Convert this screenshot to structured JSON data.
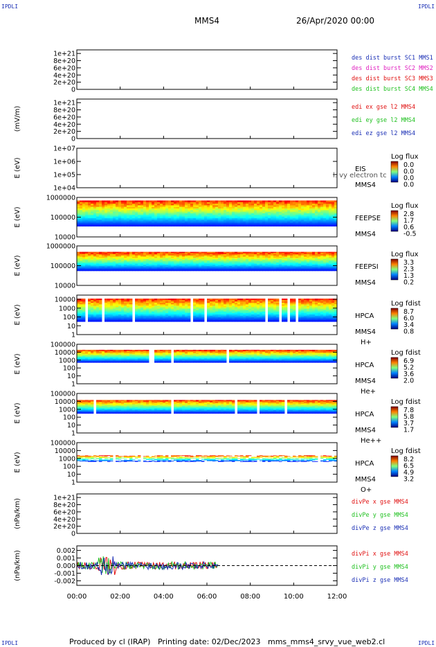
{
  "header": {
    "spacecraft": "MMS4",
    "date_time": "26/Apr/2020 00:00",
    "corner_labels": [
      "IPDLI",
      "IPDLI",
      "IPDLI",
      "IPDLI"
    ]
  },
  "footer": {
    "produced_by": "Produced by cl (IRAP)",
    "printing_date": "Printing date: 02/Dec/2023",
    "script": "mms_mms4_srvy_vue_web2.cl"
  },
  "colors": {
    "blue": "#1a2fb5",
    "magenta": "#e020c0",
    "red": "#e01010",
    "green": "#20c020"
  },
  "chart_data": [
    {
      "id": "des-dist",
      "type": "line",
      "ylabel": "",
      "y_ticks": [
        "1e+21",
        "8e+20",
        "6e+20",
        "4e+20",
        "2e+20",
        "0"
      ],
      "y_tick_values": [
        1e+21,
        8e+20,
        6e+20,
        4e+20,
        2e+20,
        0
      ],
      "ylim": [
        0,
        1.1e+21
      ],
      "dashed_zero": true,
      "legend": [
        {
          "text": "des dist burst SC1 MMS1",
          "color": "#1a2fb5"
        },
        {
          "text": "des dist burst SC2 MMS2",
          "color": "#e020c0"
        },
        {
          "text": "des dist burst SC3 MMS3",
          "color": "#e01010"
        },
        {
          "text": "des dist burst SC4 MMS4",
          "color": "#20c020"
        }
      ]
    },
    {
      "id": "edi-e",
      "type": "line",
      "ylabel": "(mV/m)",
      "y_ticks": [
        "1e+21",
        "8e+20",
        "6e+20",
        "4e+20",
        "2e+20",
        "0"
      ],
      "y_tick_values": [
        1e+21,
        8e+20,
        6e+20,
        4e+20,
        2e+20,
        0
      ],
      "ylim": [
        0,
        1.1e+21
      ],
      "dashed_zero": true,
      "legend": [
        {
          "text": "edi ex gse l2 MMS4",
          "color": "#e01010"
        },
        {
          "text": "edi ey gse l2 MMS4",
          "color": "#20c020"
        },
        {
          "text": "edi ez gse l2 MMS4",
          "color": "#1a2fb5"
        }
      ]
    },
    {
      "id": "eis",
      "type": "heatmap",
      "ylabel": "E (eV)",
      "y_ticks": [
        "1e+07",
        "1e+06",
        "1e+05",
        "1e+04"
      ],
      "y_tick_values": [
        10000000.0,
        1000000.0,
        100000.0,
        10000.0
      ],
      "ylim": [
        10000.0,
        10000000.0
      ],
      "log": true,
      "inst": [
        "EIS",
        "MMS4"
      ],
      "overlay_text": "l. vy electron tc",
      "cb_title": "Log flux",
      "cb_ticks": [
        "0.0",
        "0.0",
        "0.0",
        "0.0"
      ]
    },
    {
      "id": "feepse",
      "type": "heatmap",
      "ylabel": "E (eV)",
      "y_ticks": [
        "1000000",
        "100000",
        "10000"
      ],
      "y_tick_values": [
        1000000.0,
        100000.0,
        10000.0
      ],
      "ylim": [
        10000.0,
        1000000.0
      ],
      "log": true,
      "inst": [
        "FEEPSE",
        "MMS4"
      ],
      "cb_title": "Log flux",
      "cb_ticks": [
        "2.8",
        "1.7",
        "0.6",
        "-0.5"
      ],
      "coverage": [
        0.0,
        12.0
      ],
      "fill_range": [
        35000.0,
        700000.0
      ]
    },
    {
      "id": "feepsi",
      "type": "heatmap",
      "ylabel": "E (eV)",
      "y_ticks": [
        "1000000",
        "100000",
        "10000"
      ],
      "y_tick_values": [
        1000000.0,
        100000.0,
        10000.0
      ],
      "ylim": [
        10000.0,
        1000000.0
      ],
      "log": true,
      "inst": [
        "FEEPSI",
        "MMS4"
      ],
      "cb_title": "Log flux",
      "cb_ticks": [
        "3.3",
        "2.3",
        "1.3",
        "0.2"
      ],
      "coverage": [
        0.0,
        12.0
      ],
      "fill_range": [
        55000.0,
        500000.0
      ]
    },
    {
      "id": "hpca-h",
      "type": "heatmap",
      "ylabel": "E (eV)",
      "y_ticks": [
        "10000",
        "1000",
        "100",
        "10",
        "1"
      ],
      "y_tick_values": [
        10000.0,
        1000.0,
        100.0,
        10,
        1
      ],
      "ylim": [
        1,
        30000.0
      ],
      "log": true,
      "inst": [
        "HPCA",
        "MMS4",
        "H+"
      ],
      "cb_title": "Log fdist",
      "cb_ticks": [
        "8.7",
        "6.0",
        "3.4",
        "0.8"
      ],
      "coverage": [
        0.0,
        12.0
      ],
      "fill_range": [
        30,
        12000.0
      ]
    },
    {
      "id": "hpca-he",
      "type": "heatmap",
      "ylabel": "E (eV)",
      "y_ticks": [
        "100000",
        "10000",
        "1000",
        "100",
        "10",
        "1"
      ],
      "y_tick_values": [
        100000.0,
        10000.0,
        1000.0,
        100.0,
        10,
        1
      ],
      "ylim": [
        1,
        100000.0
      ],
      "log": true,
      "inst": [
        "HPCA",
        "MMS4",
        "He+"
      ],
      "cb_title": "Log fdist",
      "cb_ticks": [
        "6.9",
        "5.2",
        "3.6",
        "2.0"
      ],
      "coverage": [
        0.0,
        12.0
      ],
      "fill_range": [
        500,
        20000.0
      ]
    },
    {
      "id": "hpca-hepp",
      "type": "heatmap",
      "ylabel": "E (eV)",
      "y_ticks": [
        "100000",
        "10000",
        "1000",
        "100",
        "10",
        "1"
      ],
      "y_tick_values": [
        100000.0,
        10000.0,
        1000.0,
        100.0,
        10,
        1
      ],
      "ylim": [
        1,
        100000.0
      ],
      "log": true,
      "inst": [
        "HPCA",
        "MMS4",
        "He++"
      ],
      "cb_title": "Log fdist",
      "cb_ticks": [
        "7.8",
        "5.8",
        "3.7",
        "1.7"
      ],
      "coverage": [
        0.0,
        12.0
      ],
      "fill_range": [
        300,
        15000.0
      ]
    },
    {
      "id": "hpca-o",
      "type": "heatmap",
      "ylabel": "E (eV)",
      "y_ticks": [
        "100000",
        "10000",
        "1000",
        "100",
        "10",
        "1"
      ],
      "y_tick_values": [
        100000.0,
        10000.0,
        1000.0,
        100.0,
        10,
        1
      ],
      "ylim": [
        1,
        100000.0
      ],
      "log": true,
      "inst": [
        "HPCA",
        "MMS4",
        "O+"
      ],
      "cb_title": "Log fdist",
      "cb_ticks": [
        "8.2",
        "6.5",
        "4.9",
        "3.2"
      ],
      "coverage": [
        0.0,
        12.0
      ],
      "fill_range": [
        400,
        2500
      ]
    },
    {
      "id": "divpe",
      "type": "line",
      "ylabel": "(nPa/km)",
      "y_ticks": [
        "1e+21",
        "8e+20",
        "6e+20",
        "4e+20",
        "2e+20",
        "0"
      ],
      "y_tick_values": [
        1e+21,
        8e+20,
        6e+20,
        4e+20,
        2e+20,
        0
      ],
      "ylim": [
        0,
        1.1e+21
      ],
      "dashed_zero": true,
      "legend": [
        {
          "text": "divPe x gse MMS4",
          "color": "#e01010"
        },
        {
          "text": "divPe y gse MMS4",
          "color": "#20c020"
        },
        {
          "text": "divPe z gse MMS4",
          "color": "#1a2fb5"
        }
      ]
    },
    {
      "id": "divpi",
      "type": "line",
      "ylabel": "(nPa/km)",
      "y_ticks": [
        "0.002",
        "0.001",
        "0.000",
        "-0.001",
        "-0.002"
      ],
      "y_tick_values": [
        0.002,
        0.001,
        0.0,
        -0.001,
        -0.002
      ],
      "ylim": [
        -0.0026,
        0.0026
      ],
      "dashed_zero": true,
      "data_end": 6.5,
      "amplitude": 0.0005,
      "legend": [
        {
          "text": "divPi x gse MMS4",
          "color": "#e01010"
        },
        {
          "text": "divPi y gse MMS4",
          "color": "#20c020"
        },
        {
          "text": "divPi z gse MMS4",
          "color": "#1a2fb5"
        }
      ]
    }
  ],
  "x_axis": {
    "tick_labels": [
      "00:00",
      "02:00",
      "04:00",
      "06:00",
      "08:00",
      "10:00",
      "12:00"
    ],
    "tick_hours": [
      0,
      2,
      4,
      6,
      8,
      10,
      12
    ],
    "range_hours": [
      0,
      12
    ]
  }
}
